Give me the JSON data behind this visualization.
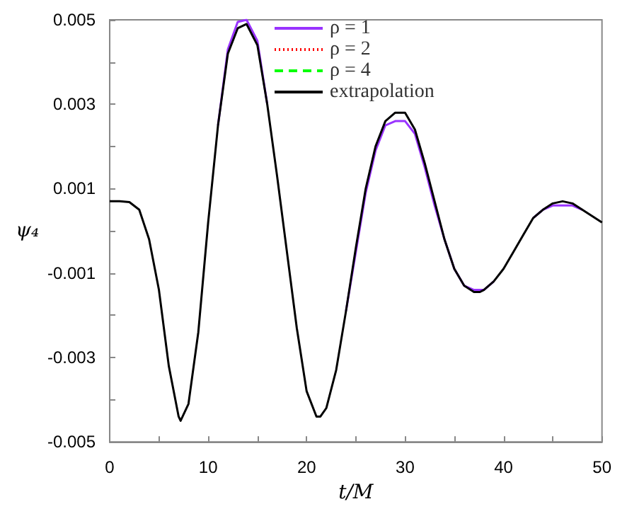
{
  "chart_data": {
    "type": "line",
    "xlabel": "t/M",
    "ylabel": "ψ₄",
    "legend": "top right",
    "marker": "none",
    "x": [
      0,
      1,
      2,
      3,
      4,
      5,
      6,
      7,
      7.2,
      8,
      9,
      10,
      11,
      12,
      13,
      13.9,
      15,
      16,
      17,
      18,
      19,
      20,
      21,
      21.4,
      22,
      23,
      24,
      25,
      26,
      27,
      28,
      29,
      29.5,
      30,
      31,
      32,
      33,
      34,
      35,
      36,
      37,
      37.6,
      38,
      39,
      40,
      41,
      42,
      43,
      44,
      45,
      46,
      47,
      48,
      49,
      50
    ],
    "xlim": [
      0,
      50
    ],
    "xticks": [
      0,
      {
        "value": 5,
        "label": null
      },
      10,
      {
        "value": 15,
        "label": null
      },
      20,
      {
        "value": 25,
        "label": null
      },
      30,
      {
        "value": 35,
        "label": null
      },
      40,
      {
        "value": 45,
        "label": null
      },
      50
    ],
    "ylim": [
      -0.005,
      0.005
    ],
    "yticks": [
      -0.005,
      {
        "value": -0.004,
        "label": null
      },
      -0.003,
      {
        "value": -0.002,
        "label": null
      },
      -0.001,
      {
        "value": 0,
        "label": null
      },
      0.001,
      {
        "value": 0.002,
        "label": null
      },
      0.003,
      {
        "value": 0.004,
        "label": null
      },
      0.005
    ],
    "series": [
      {
        "name": "ρ = 1",
        "color": "#9933ff",
        "line_style": "solid",
        "values": [
          null,
          null,
          null,
          null,
          null,
          null,
          null,
          null,
          null,
          null,
          null,
          null,
          0.0025,
          0.0043,
          0.00495,
          0.005,
          0.0045,
          0.003,
          null,
          null,
          null,
          null,
          null,
          null,
          null,
          null,
          -0.0019,
          -0.0005,
          0.0009,
          0.0019,
          0.0025,
          0.0026,
          0.0026,
          0.0026,
          0.0023,
          0.0015,
          0.0006,
          -0.0002,
          -0.0009,
          -0.0013,
          -0.0014,
          -0.0014,
          -0.0014,
          -0.0012,
          null,
          null,
          null,
          0.0003,
          0.0005,
          0.0006,
          0.0006,
          0.0006,
          0.0005,
          null,
          null
        ]
      },
      {
        "name": "ρ = 2",
        "color": "#ff0000",
        "line_style": "dotted",
        "values": [
          null,
          null,
          null,
          null,
          null,
          null,
          null,
          null,
          null,
          null,
          null,
          null,
          null,
          null,
          null,
          null,
          null,
          null,
          null,
          null,
          null,
          null,
          null,
          null,
          null,
          null,
          null,
          null,
          null,
          null,
          null,
          null,
          null,
          null,
          null,
          null,
          null,
          null,
          null,
          null,
          null,
          null,
          null,
          null,
          null,
          null,
          null,
          null,
          null,
          null,
          null,
          null,
          null,
          null,
          null
        ]
      },
      {
        "name": "ρ = 4",
        "color": "#00ff00",
        "line_style": "dashed",
        "values": [
          null,
          null,
          null,
          null,
          null,
          null,
          null,
          null,
          null,
          null,
          null,
          null,
          null,
          null,
          null,
          null,
          null,
          null,
          null,
          null,
          null,
          null,
          null,
          null,
          null,
          null,
          null,
          null,
          null,
          null,
          null,
          null,
          null,
          null,
          null,
          null,
          null,
          null,
          null,
          null,
          null,
          null,
          null,
          null,
          null,
          null,
          null,
          null,
          null,
          null,
          null,
          null,
          null,
          null,
          null
        ]
      },
      {
        "name": "extrapolation",
        "color": "#000000",
        "line_style": "solid",
        "values": [
          0.0007,
          0.0007,
          0.00068,
          0.0005,
          -0.0002,
          -0.0014,
          -0.0032,
          -0.0044,
          -0.0045,
          -0.0041,
          -0.0024,
          0.0002,
          0.0025,
          0.0042,
          0.0048,
          0.0049,
          0.0044,
          0.003,
          0.0013,
          -0.0005,
          -0.0023,
          -0.0038,
          -0.0044,
          -0.0044,
          -0.0042,
          -0.0033,
          -0.0019,
          -0.0004,
          0.001,
          0.002,
          0.0026,
          0.0028,
          0.0028,
          0.0028,
          0.0024,
          0.0016,
          0.0007,
          -0.0002,
          -0.0009,
          -0.0013,
          -0.00145,
          -0.00145,
          -0.0014,
          -0.0012,
          -0.0009,
          -0.0005,
          -0.0001,
          0.0003,
          0.0005,
          0.00065,
          0.0007,
          0.00065,
          0.0005,
          0.00035,
          0.0002
        ]
      }
    ]
  }
}
